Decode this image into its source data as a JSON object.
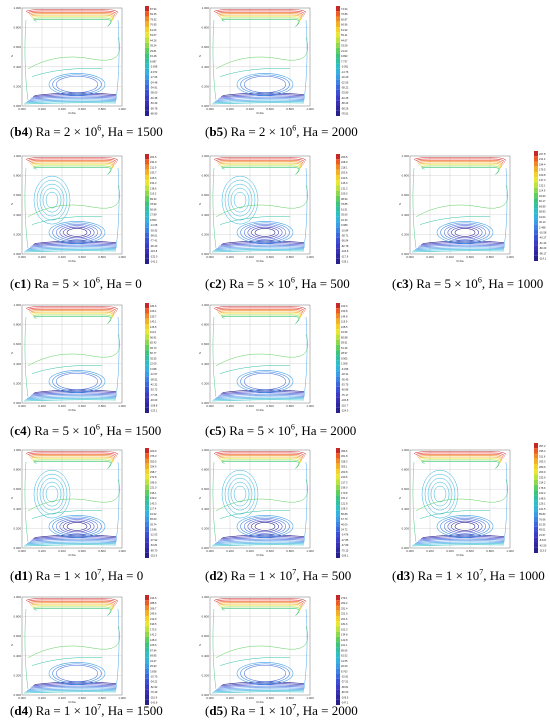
{
  "figure": {
    "x_axis_label": "R-Ra",
    "y_axis_label": "Z",
    "x_ticks": [
      "0.000",
      "0.200",
      "0.400",
      "0.600",
      "0.800",
      "1.000"
    ],
    "y_ticks": [
      "0.000",
      "0.200",
      "0.400",
      "0.600",
      "0.800",
      "1.000"
    ],
    "panels": [
      {
        "id": "b4",
        "label": "b4",
        "ra_mantissa": "2",
        "ra_exponent": "6",
        "ha": "1500",
        "colorbar": [
          "87.94",
          "69.45",
          "79.92",
          "76.95",
          "61.06",
          "53.67",
          "44.26",
          "39.24",
          "29.81",
          "15.48",
          "8.087",
          "-2.658",
          "-9.072",
          "-17.66",
          "-24.48",
          "-34.91",
          "-38.00",
          "-46.38",
          "-53.49",
          "-59.78",
          "-68.90"
        ]
      },
      {
        "id": "b5",
        "label": "b5",
        "ra_mantissa": "2",
        "ra_exponent": "6",
        "ha": "2000",
        "colorbar": [
          "74.94",
          "76.89",
          "60.87",
          "66.96",
          "61.92",
          "55.41",
          "44.67",
          "33.59",
          "21.02",
          "9.993",
          "7.737",
          "-0.051",
          "-14.76",
          "-16.29",
          "-22.55",
          "-38.22",
          "-33.80",
          "-40.25",
          "-58.24",
          "-58.26",
          "-78.51"
        ]
      },
      {
        "id": "c1",
        "label": "c1",
        "ra_mantissa": "5",
        "ra_exponent": "6",
        "ha": "0",
        "colorbar": [
          "261.5",
          "234.9",
          "211.9",
          "193.7",
          "166.6",
          "154.3",
          "138.6",
          "116.2",
          "89.33",
          "78.99",
          "56.66",
          "27.89",
          "9.550",
          "-14.68",
          "-39.92",
          "-58.61",
          "-77.41",
          "-99.43",
          "-115.8",
          "-132.0",
          "-141.2"
        ]
      },
      {
        "id": "c2",
        "label": "c2",
        "ra_mantissa": "5",
        "ra_exponent": "6",
        "ha": "500",
        "colorbar": [
          "260.5",
          "228.9",
          "218.1",
          "203.6",
          "160.6",
          "145.0",
          "131.3",
          "109.0",
          "98.94",
          "78.85",
          "61.51",
          "35.60",
          "22.30",
          "9.089",
          "-10.84",
          "-38.71",
          "-56.04",
          "-82.78",
          "-104.8",
          "-117.9",
          "-135.1"
        ]
      },
      {
        "id": "c3",
        "label": "c3",
        "ra_mantissa": "5",
        "ra_exponent": "6",
        "ha": "1000",
        "colorbar": [
          "227.8",
          "211.3",
          "194.4",
          "176.5",
          "160.8",
          "147.3",
          "132.1",
          "114.9",
          "94.93",
          "82.17",
          "69.89",
          "58.83",
          "44.64",
          "30.13",
          "2.498",
          "-16.58",
          "-40.27",
          "-61.32",
          "-80.23",
          "-98.17",
          "-114.1"
        ]
      },
      {
        "id": "c4",
        "label": "c4",
        "ra_mantissa": "5",
        "ra_exponent": "6",
        "ha": "1500",
        "colorbar": [
          "184.6",
          "169.1",
          "155.7",
          "143.1",
          "126.5",
          "111.6",
          "96.91",
          "82.42",
          "65.73",
          "50.77",
          "35.55",
          "22.09",
          "3.038",
          "-12.57",
          "-28.51",
          "-42.32",
          "-53.72",
          "-77.65",
          "-93.60",
          "-108.8",
          "-123.1"
        ]
      },
      {
        "id": "c5",
        "label": "c5",
        "ra_mantissa": "5",
        "ra_exponent": "6",
        "ha": "2000",
        "colorbar": [
          "163.0",
          "153.8",
          "144.8",
          "119.9",
          "108.5",
          "91.66",
          "80.88",
          "59.91",
          "51.46",
          "28.97",
          "9.905",
          "1.508",
          "-9.336",
          "-18.31",
          "-36.45",
          "-53.75",
          "-60.86",
          "-75.17",
          "-100.8",
          "-110.7",
          "-124.3"
        ]
      },
      {
        "id": "d1",
        "label": "d1",
        "ra_mantissa": "1",
        "ra_exponent": "7",
        "ha": "0",
        "colorbar": [
          "400.9",
          "376.3",
          "350.5",
          "324.6",
          "298.7",
          "272.8",
          "246.9",
          "221.0",
          "195.1",
          "169.2",
          "143.3",
          "117.4",
          "91.52",
          "65.63",
          "39.74",
          "13.86",
          "-12.03",
          "-37.92",
          "-63.81",
          "-89.70",
          "-115.6"
        ]
      },
      {
        "id": "d2",
        "label": "d2",
        "ra_mantissa": "1",
        "ra_exponent": "7",
        "ha": "500",
        "colorbar": [
          "399.6",
          "361.8",
          "328.3",
          "305.1",
          "263.8",
          "240.6",
          "217.3",
          "196.0",
          "170.8",
          "151.2",
          "121.8",
          "108.3",
          "86.89",
          "67.70",
          "46.00",
          "24.72",
          "-0.476",
          "-27.85",
          "-47.89",
          "-70.15",
          "-106.1"
        ]
      },
      {
        "id": "d3",
        "label": "d3",
        "ra_mantissa": "1",
        "ra_exponent": "7",
        "ha": "1000",
        "colorbar": [
          "357.2",
          "335.4",
          "311.6",
          "293.3",
          "280.6",
          "263.9",
          "233.9",
          "214.2",
          "175.6",
          "163.2",
          "148.5",
          "126.1",
          "101.5",
          "89.84",
          "76.66",
          "62.35",
          "45.01",
          "21.57",
          "-8.617",
          "-42.50",
          "-113.5"
        ]
      },
      {
        "id": "d4",
        "label": "d4",
        "ra_mantissa": "1",
        "ra_exponent": "7",
        "ha": "1500",
        "colorbar": [
          "314.5",
          "288.6",
          "266.7",
          "245.6",
          "212.9",
          "199.5",
          "173.5",
          "141.2",
          "128.9",
          "109.6",
          "87.94",
          "69.85",
          "43.47",
          "25.90",
          "3.838",
          "-19.75",
          "-34.22",
          "-52.93",
          "-76.49",
          "-110.9",
          "-141.8"
        ]
      },
      {
        "id": "d5",
        "label": "d5",
        "ra_mantissa": "1",
        "ra_exponent": "7",
        "ha": "2000",
        "colorbar": [
          "279.1",
          "263.2",
          "251.4",
          "221.0",
          "201.6",
          "181.6",
          "162.3",
          "134.8",
          "122.8",
          "101.1",
          "85.06",
          "62.52",
          "41.55",
          "20.60",
          "8.763",
          "-15.81",
          "-37.51",
          "-58.81",
          "-80.63",
          "-109.5",
          "-147.1"
        ]
      }
    ],
    "caption_ra_prefix": "Ra = ",
    "caption_times": " × 10",
    "caption_ha_prefix": ", Ha = "
  }
}
